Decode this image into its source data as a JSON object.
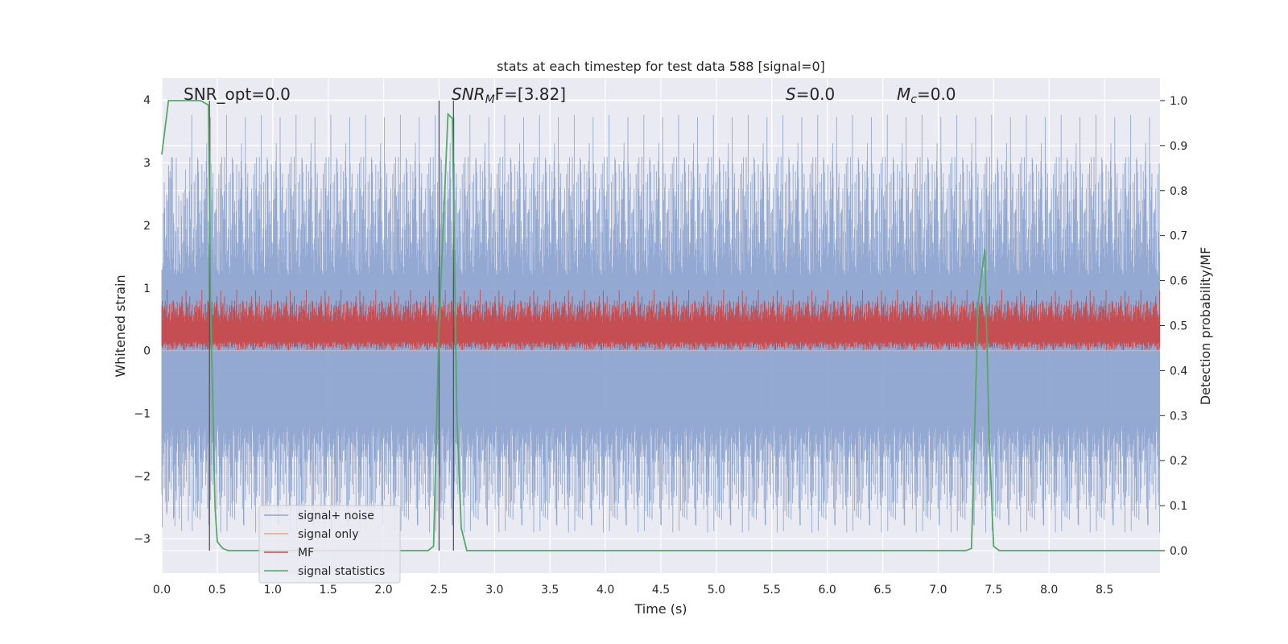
{
  "chart_data": {
    "type": "line",
    "title": "stats at each timestep for test data 588 [signal=0]",
    "xlabel": "Time (s)",
    "ylabel": "Whitened strain",
    "y2label": "Detection probability/MF",
    "xlim": [
      0.0,
      9.0
    ],
    "ylim": [
      -3.55,
      4.35
    ],
    "y2lim": [
      -0.05,
      1.05
    ],
    "xticks": [
      "0.0",
      "0.5",
      "1.0",
      "1.5",
      "2.0",
      "2.5",
      "3.0",
      "3.5",
      "4.0",
      "4.5",
      "5.0",
      "5.5",
      "6.0",
      "6.5",
      "7.0",
      "7.5",
      "8.0",
      "8.5"
    ],
    "yticks": [
      "4",
      "3",
      "2",
      "1",
      "0",
      "−1",
      "−2",
      "−3"
    ],
    "y2ticks": [
      "1.0",
      "0.9",
      "0.8",
      "0.7",
      "0.6",
      "0.5",
      "0.4",
      "0.3",
      "0.2",
      "0.1",
      "0.0"
    ],
    "grid": true,
    "legend_position": "lower-left",
    "annotations": {
      "snr_opt": "SNR_opt=0.0",
      "snr_mf_main": "SNR",
      "snr_mf_sub": "M",
      "snr_mf_tail": "F=[3.82]",
      "s_main": "S",
      "s_tail": "=0.0",
      "mc_main": "M",
      "mc_sub": "c",
      "mc_tail": "=0.0"
    },
    "series": [
      {
        "name": "signal+ noise",
        "color": "#8fa5cf",
        "axis": "left",
        "kind": "noise",
        "amplitude_range": [
          -3.3,
          4.0
        ]
      },
      {
        "name": "signal only",
        "color": "#e8a88a",
        "axis": "left",
        "values_constant": 0.0
      },
      {
        "name": "MF",
        "color": "#c44e52",
        "axis": "left",
        "kind": "noise",
        "center": 0.35,
        "amplitude_range": [
          0.0,
          1.0
        ]
      },
      {
        "name": "signal statistics",
        "color": "#55a868",
        "axis": "right",
        "x": [
          0.0,
          0.06,
          0.15,
          0.25,
          0.35,
          0.42,
          0.44,
          0.48,
          0.5,
          0.55,
          0.6,
          2.4,
          2.45,
          2.5,
          2.58,
          2.62,
          2.66,
          2.7,
          2.75,
          7.25,
          7.3,
          7.36,
          7.42,
          7.46,
          7.5,
          7.55,
          9.0
        ],
        "y": [
          0.88,
          1.0,
          1.0,
          1.0,
          1.0,
          0.99,
          0.55,
          0.1,
          0.02,
          0.005,
          0.0,
          0.0,
          0.01,
          0.5,
          0.97,
          0.96,
          0.3,
          0.05,
          0.0,
          0.0,
          0.005,
          0.55,
          0.67,
          0.25,
          0.01,
          0.0,
          0.0
        ]
      }
    ],
    "vertical_lines": [
      0.43,
      2.5,
      2.63
    ]
  }
}
